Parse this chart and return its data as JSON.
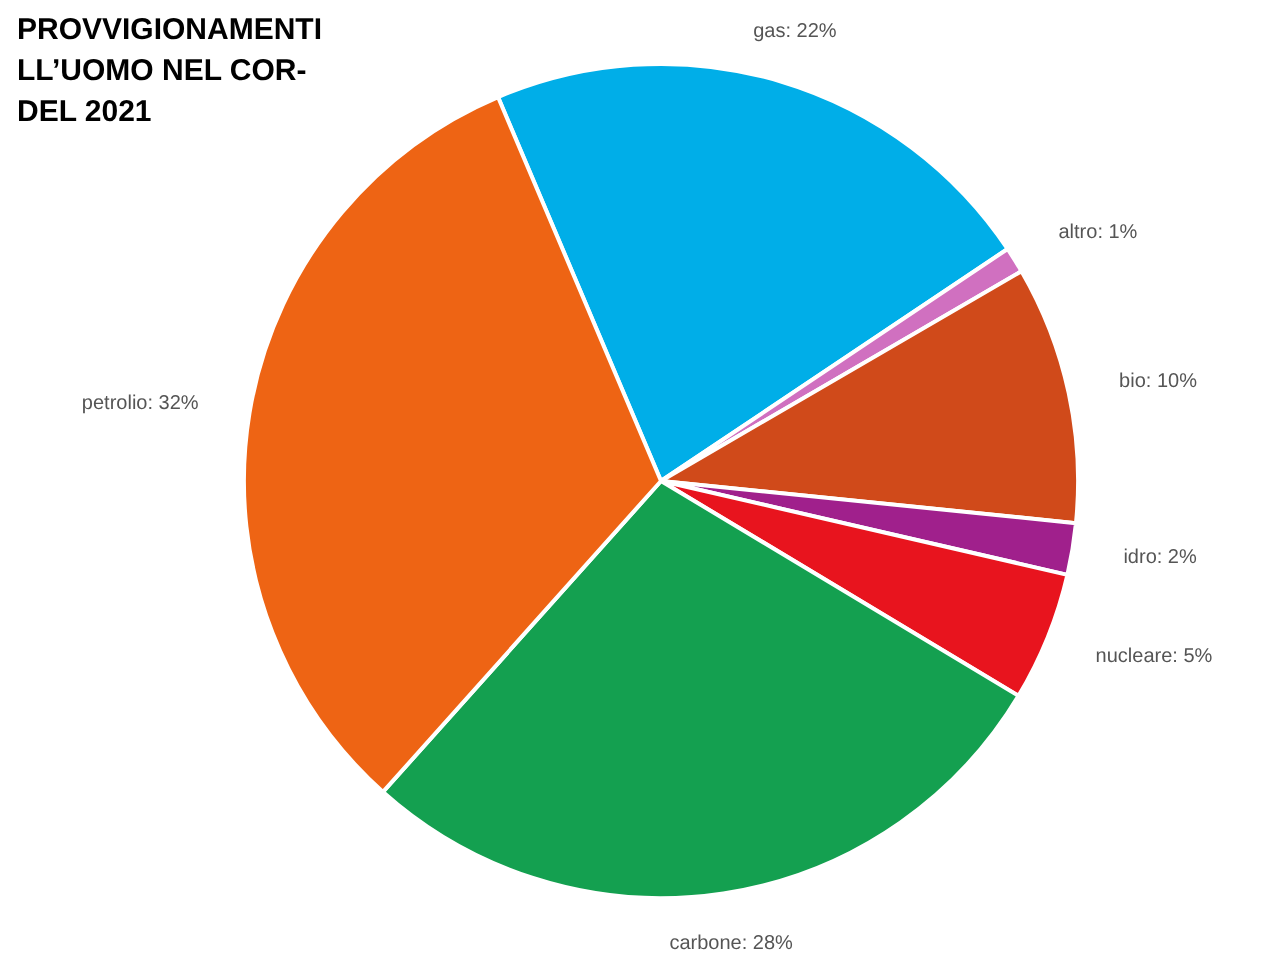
{
  "chart_data": {
    "type": "pie",
    "title": "PROVVIGIONAMENTI\nLL’UOMO NEL COR-\nDEL 2021",
    "categories": [
      "gas: 22%",
      "altro: 1%",
      "bio: 10%",
      "idro: 2%",
      "nucleare: 5%",
      "carbone: 28%",
      "petrolio: 32%"
    ],
    "values": [
      22,
      1,
      10,
      2,
      5,
      28,
      32
    ],
    "colors": [
      "#00aee8",
      "#d070c0",
      "#d04a1a",
      "#a0208c",
      "#e8141e",
      "#14a050",
      "#ee6414"
    ]
  }
}
